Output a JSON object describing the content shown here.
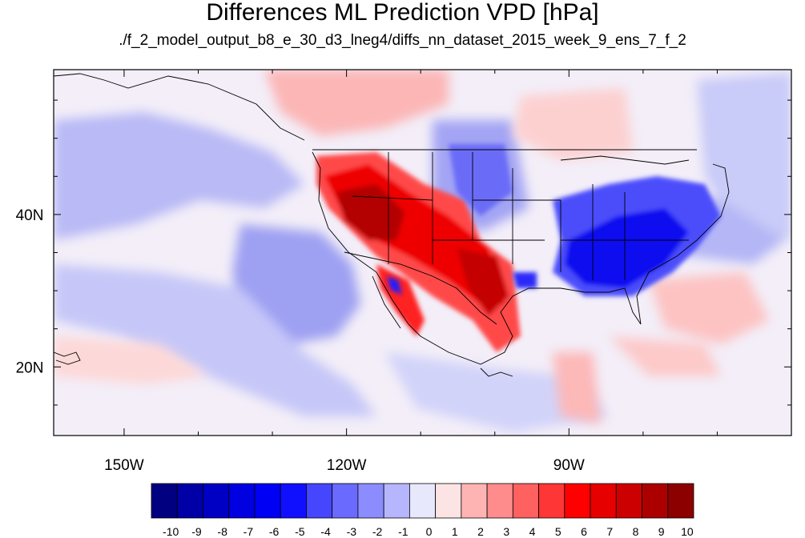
{
  "title": "Differences ML Prediction VPD [hPa]",
  "subtitle": "./f_2_model_output_b8_e_30_d3_lneg4/diffs_nn_dataset_2015_week_9_ens_7_f_2",
  "axes": {
    "x_ticks": [
      {
        "label": "150W",
        "lon": -150
      },
      {
        "label": "120W",
        "lon": -120
      },
      {
        "label": "90W",
        "lon": -90
      }
    ],
    "y_ticks": [
      {
        "label": "40N",
        "lat": 40
      },
      {
        "label": "20N",
        "lat": 20
      }
    ],
    "lon_range": [
      -159.5,
      -60
    ],
    "lat_range": [
      11,
      59
    ]
  },
  "colorbar": {
    "labels": [
      "-10",
      "-9",
      "-8",
      "-7",
      "-6",
      "-5",
      "-4",
      "-3",
      "-2",
      "-1",
      "0",
      "1",
      "2",
      "3",
      "4",
      "5",
      "6",
      "7",
      "8",
      "9",
      "10"
    ],
    "colors": [
      "#000080",
      "#0000a6",
      "#0000c4",
      "#0000e0",
      "#0000f5",
      "#1010ff",
      "#4646ff",
      "#6a6aff",
      "#8c8cff",
      "#b6b6ff",
      "#e8e8fc",
      "#fde4e4",
      "#ffb4b4",
      "#ff8c8c",
      "#ff6060",
      "#ff3636",
      "#ff0000",
      "#e60000",
      "#cc0000",
      "#ac0000",
      "#8c0000"
    ]
  }
}
